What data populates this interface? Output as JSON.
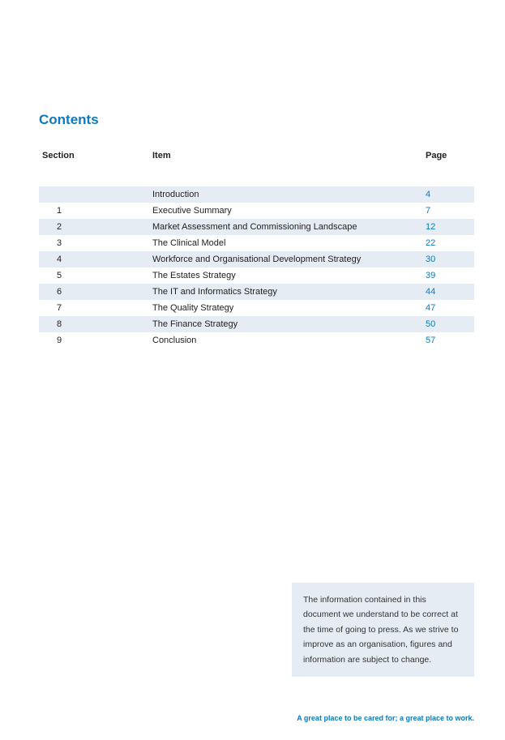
{
  "title": "Contents",
  "headers": {
    "section": "Section",
    "item": "Item",
    "page": "Page"
  },
  "rows": [
    {
      "section": "",
      "item": "Introduction",
      "page": "4"
    },
    {
      "section": "1",
      "item": "Executive Summary",
      "page": "7"
    },
    {
      "section": "2",
      "item": "Market Assessment and Commissioning Landscape",
      "page": "12"
    },
    {
      "section": "3",
      "item": "The Clinical Model",
      "page": "22"
    },
    {
      "section": "4",
      "item": "Workforce and Organisational Development Strategy",
      "page": "30"
    },
    {
      "section": "5",
      "item": "The Estates Strategy",
      "page": "39"
    },
    {
      "section": "6",
      "item": "The IT and Informatics Strategy",
      "page": "44"
    },
    {
      "section": "7",
      "item": "The Quality Strategy",
      "page": "47"
    },
    {
      "section": "8",
      "item": "The Finance Strategy",
      "page": "50"
    },
    {
      "section": "9",
      "item": "Conclusion",
      "page": "57"
    }
  ],
  "info_box": "The information contained in this document we understand to be correct at the time of going to press. As we strive to improve as an organisation, figures and information are subject to change.",
  "footer": "A great place to be cared for; a great place to work.",
  "colors": {
    "accent": "#0a7ac2",
    "row_alt_bg": "#e6ecf3",
    "text": "#222222",
    "bg": "#ffffff"
  }
}
